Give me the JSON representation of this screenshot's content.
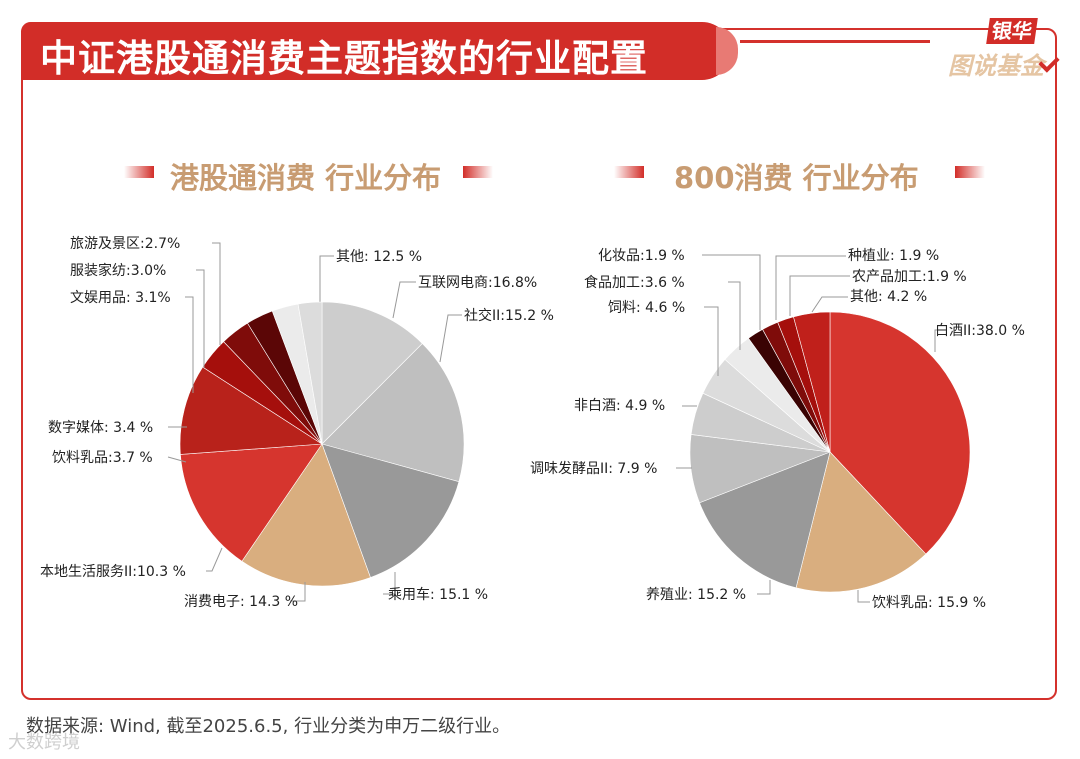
{
  "header": {
    "title": "中证港股通消费主题指数的行业配置",
    "logo_top": "银华",
    "logo_bottom": "图说基金"
  },
  "source_note": "数据来源: Wind, 截至2025.6.5, 行业分类为申万二级行业。",
  "watermark": "大数跨境",
  "chart_data": [
    {
      "type": "pie",
      "title": "港股通消费 行业分布",
      "slices": [
        {
          "label": "其他",
          "value": 12.5,
          "text": "其他: 12.5 %",
          "color": "#cdcdcd"
        },
        {
          "label": "互联网电商",
          "value": 16.8,
          "text": "互联网电商:16.8%",
          "color": "#bfbfbf"
        },
        {
          "label": "社交II",
          "value": 15.2,
          "text": "社交II:15.2 %",
          "color": "#999999"
        },
        {
          "label": "乘用车",
          "value": 15.1,
          "text": "乘用车: 15.1 %",
          "color": "#d9ae7f"
        },
        {
          "label": "消费电子",
          "value": 14.3,
          "text": "消费电子: 14.3 %",
          "color": "#d6352e"
        },
        {
          "label": "本地生活服务II",
          "value": 10.3,
          "text": "本地生活服务II:10.3 %",
          "color": "#b8221b"
        },
        {
          "label": "饮料乳品",
          "value": 3.7,
          "text": "饮料乳品:3.7 %",
          "color": "#a50f0c"
        },
        {
          "label": "数字媒体",
          "value": 3.4,
          "text": "数字媒体: 3.4 %",
          "color": "#7f0c0a"
        },
        {
          "label": "文娱用品",
          "value": 3.1,
          "text": "文娱用品: 3.1%",
          "color": "#5b0606"
        },
        {
          "label": "服装家纺",
          "value": 3.0,
          "text": "服装家纺:3.0%",
          "color": "#ebebeb"
        },
        {
          "label": "旅游及景区",
          "value": 2.7,
          "text": "旅游及景区:2.7%",
          "color": "#dcdcdc"
        }
      ]
    },
    {
      "type": "pie",
      "title": "800消费 行业分布",
      "slices": [
        {
          "label": "白酒II",
          "value": 38.0,
          "text": "白酒II:38.0 %",
          "color": "#d6352e"
        },
        {
          "label": "饮料乳品",
          "value": 15.9,
          "text": "饮料乳品: 15.9 %",
          "color": "#d9ae7f"
        },
        {
          "label": "养殖业",
          "value": 15.2,
          "text": "养殖业: 15.2 %",
          "color": "#999999"
        },
        {
          "label": "调味发酵品II",
          "value": 7.9,
          "text": "调味发酵品II: 7.9 %",
          "color": "#bfbfbf"
        },
        {
          "label": "非白酒",
          "value": 4.9,
          "text": "非白酒: 4.9 %",
          "color": "#cdcdcd"
        },
        {
          "label": "饲料",
          "value": 4.6,
          "text": "饲料: 4.6 %",
          "color": "#dcdcdc"
        },
        {
          "label": "食品加工",
          "value": 3.6,
          "text": "食品加工:3.6 %",
          "color": "#ebebeb"
        },
        {
          "label": "化妆品",
          "value": 1.9,
          "text": "化妆品:1.9 %",
          "color": "#3a0303"
        },
        {
          "label": "种植业",
          "value": 1.9,
          "text": "种植业: 1.9 %",
          "color": "#7f0c0a"
        },
        {
          "label": "农产品加工",
          "value": 1.9,
          "text": "农产品加工:1.9 %",
          "color": "#a50f0c"
        },
        {
          "label": "其他",
          "value": 4.2,
          "text": "其他: 4.2 %",
          "color": "#c0201b"
        }
      ]
    }
  ]
}
